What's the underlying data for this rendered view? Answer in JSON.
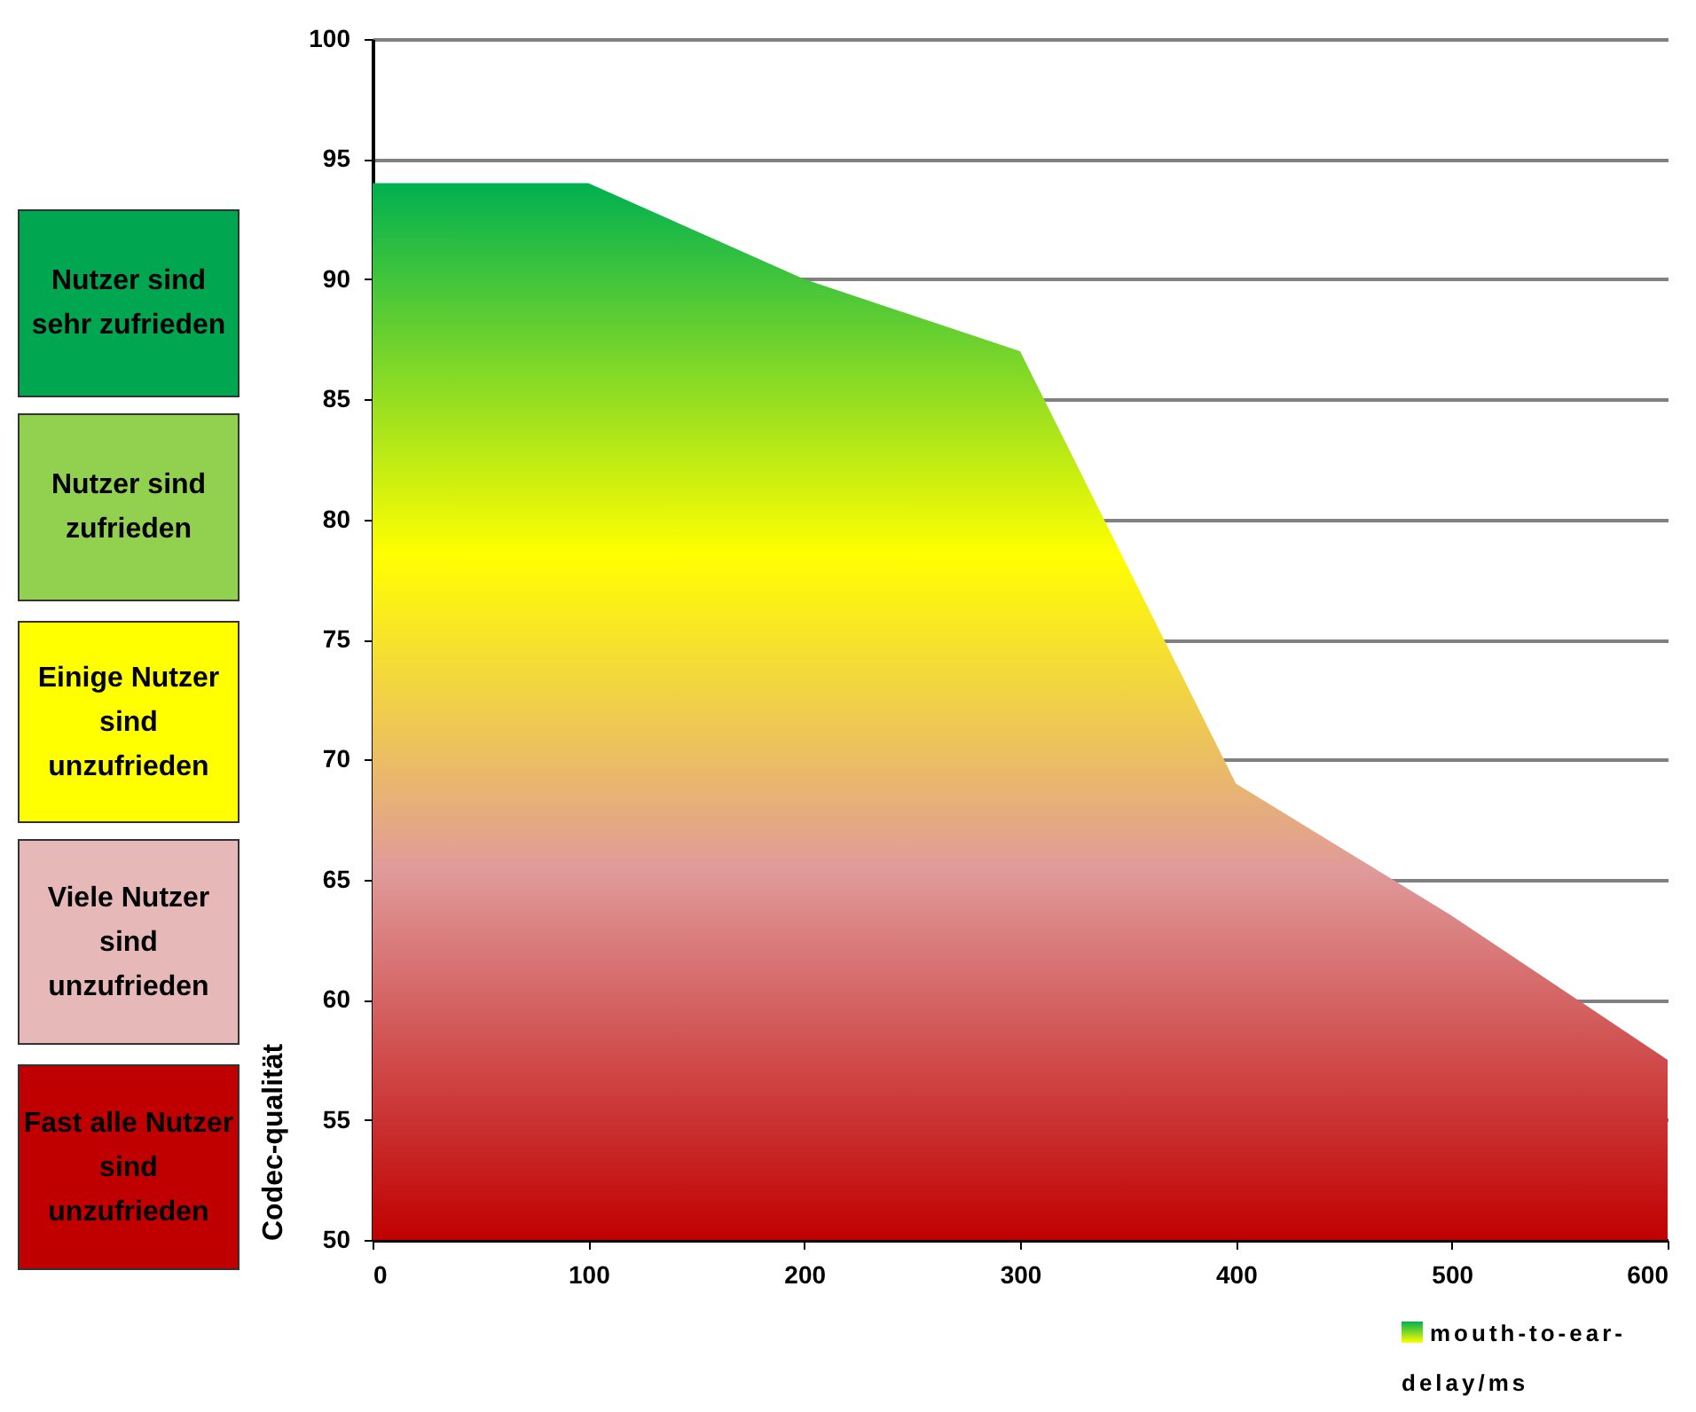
{
  "chart_data": {
    "type": "area",
    "ylabel": "Codec-qualität",
    "x": [
      0,
      100,
      200,
      300,
      400,
      500,
      600
    ],
    "series": [
      {
        "name": "mouth-to-ear-delay/ms",
        "values": [
          94,
          94,
          90,
          87,
          69,
          63.5,
          57.5
        ]
      }
    ],
    "xlim": [
      0,
      600
    ],
    "xticks": [
      0,
      100,
      200,
      300,
      400,
      500,
      600
    ],
    "ylim": [
      50,
      100
    ],
    "yticks": [
      50,
      55,
      60,
      65,
      70,
      75,
      80,
      85,
      90,
      95,
      100
    ],
    "grid": "y",
    "legend": "bottom right",
    "annotations": [
      "Nutzer sind sehr zufrieden",
      "Nutzer sind zufrieden",
      "Einige Nutzer sind unzufrieden",
      "Viele Nutzer sind unzufrieden",
      "Fast alle Nutzer sind unzufrieden"
    ]
  }
}
